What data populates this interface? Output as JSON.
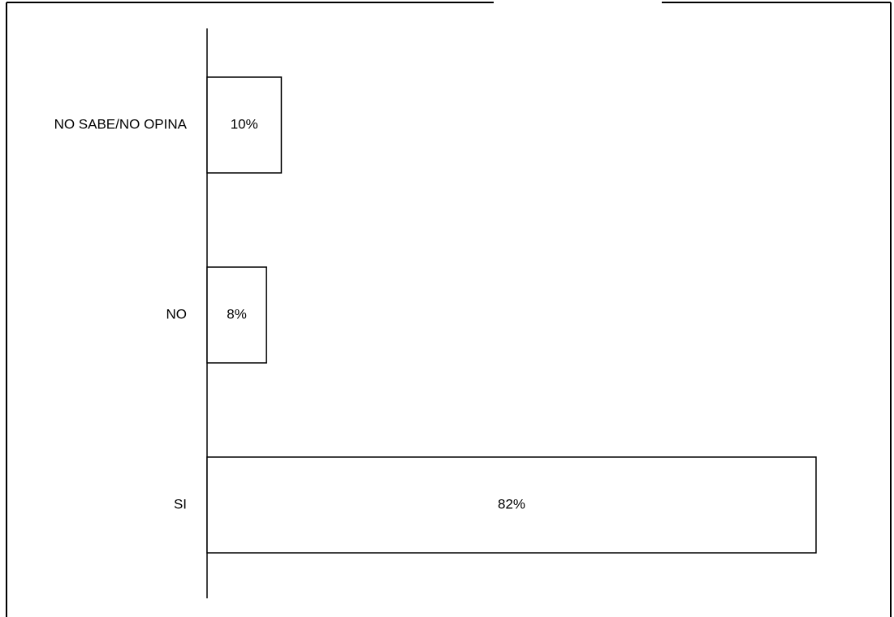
{
  "chart_data": {
    "type": "bar",
    "orientation": "horizontal",
    "categories": [
      "NO SABE/NO OPINA",
      "NO",
      "SI"
    ],
    "values": [
      10,
      8,
      82
    ],
    "data_labels": [
      "10%",
      "8%",
      "82%"
    ],
    "unit": "%",
    "xlim": [
      0,
      82
    ],
    "grid": false,
    "legend": "none",
    "bar_fill": "#ffffff",
    "bar_stroke": "#000000"
  }
}
